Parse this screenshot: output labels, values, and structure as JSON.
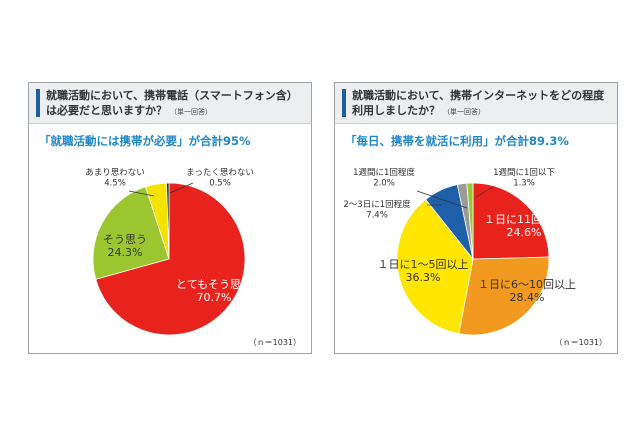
{
  "panels": [
    {
      "question": "就職活動において、携帯電話（スマートフォン含）は必要だと思いますか？",
      "answer_note": "（単一回答）",
      "summary": "「就職活動には携帯が必要」が合計95%",
      "n_note": "（ｎ＝1031）"
    },
    {
      "question": "就職活動において、携帯インターネットをどの程度利用しましたか？",
      "answer_note": "（単一回答）",
      "summary": "「毎日、携帯を就活に利用」が合計89.3%",
      "n_note": "（ｎ＝1031）"
    }
  ],
  "chart_data": [
    {
      "type": "pie",
      "title": "就職活動において、携帯電話（スマートフォン含）は必要だと思いますか？",
      "slices": [
        {
          "label": "とてもそう思う",
          "value": 70.7,
          "value_label": "70.7%",
          "color": "#e8231d"
        },
        {
          "label": "そう思う",
          "value": 24.3,
          "value_label": "24.3%",
          "color": "#9cc630"
        },
        {
          "label": "あまり思わない",
          "value": 4.5,
          "value_label": "4.5%",
          "color": "#f4e200"
        },
        {
          "label": "まったく思わない",
          "value": 0.5,
          "value_label": "0.5%",
          "color": "#111111"
        }
      ]
    },
    {
      "type": "pie",
      "title": "就職活動において、携帯インターネットをどの程度利用しましたか？",
      "slices": [
        {
          "label": "１日に11回以上",
          "value": 24.6,
          "value_label": "24.6%",
          "color": "#e8231d"
        },
        {
          "label": "１日に6〜10回以上",
          "value": 28.4,
          "value_label": "28.4%",
          "color": "#f29a1f"
        },
        {
          "label": "１日に1〜5回以上",
          "value": 36.3,
          "value_label": "36.3%",
          "color": "#ffe600"
        },
        {
          "label": "2〜3日に1回程度",
          "value": 7.4,
          "value_label": "7.4%",
          "color": "#1d5fa8"
        },
        {
          "label": "1週間に1回程度",
          "value": 2.0,
          "value_label": "2.0%",
          "color": "#9a9a9a"
        },
        {
          "label": "1週間に1回以下",
          "value": 1.3,
          "value_label": "1.3%",
          "color": "#9cc630"
        }
      ]
    }
  ]
}
